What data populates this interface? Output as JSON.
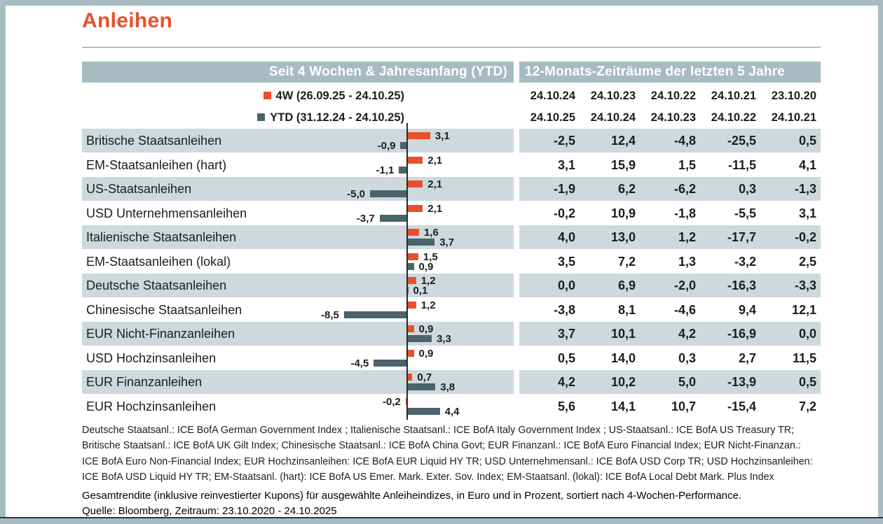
{
  "title": "Anleihen",
  "table": {
    "left_header": "Seit 4 Wochen & Jahresanfang (YTD)",
    "right_header": "12-Monats-Zeiträume der letzten 5 Jahre",
    "legend": [
      {
        "label": "4W (26.09.25 - 24.10.25)",
        "color": "#e8502a"
      },
      {
        "label": "YTD (31.12.24 - 24.10.25)",
        "color": "#4a636d"
      }
    ],
    "periods": [
      {
        "start": "24.10.24",
        "end": "24.10.25"
      },
      {
        "start": "24.10.23",
        "end": "24.10.24"
      },
      {
        "start": "24.10.22",
        "end": "24.10.23"
      },
      {
        "start": "24.10.21",
        "end": "24.10.22"
      },
      {
        "start": "23.10.20",
        "end": "24.10.21"
      }
    ],
    "rows": [
      {
        "name": "Britische Staatsanleihen",
        "w4": 3.1,
        "w4_label": "3,1",
        "ytd": -0.9,
        "ytd_label": "-0,9",
        "values": [
          "-2,5",
          "12,4",
          "-4,8",
          "-25,5",
          "0,5"
        ]
      },
      {
        "name": "EM-Staatsanleihen (hart)",
        "w4": 2.1,
        "w4_label": "2,1",
        "ytd": -1.1,
        "ytd_label": "-1,1",
        "values": [
          "3,1",
          "15,9",
          "1,5",
          "-11,5",
          "4,1"
        ]
      },
      {
        "name": "US-Staatsanleihen",
        "w4": 2.1,
        "w4_label": "2,1",
        "ytd": -5.0,
        "ytd_label": "-5,0",
        "values": [
          "-1,9",
          "6,2",
          "-6,2",
          "0,3",
          "-1,3"
        ]
      },
      {
        "name": "USD Unternehmensanleihen",
        "w4": 2.1,
        "w4_label": "2,1",
        "ytd": -3.7,
        "ytd_label": "-3,7",
        "values": [
          "-0,2",
          "10,9",
          "-1,8",
          "-5,5",
          "3,1"
        ]
      },
      {
        "name": "Italienische Staatsanleihen",
        "w4": 1.6,
        "w4_label": "1,6",
        "ytd": 3.7,
        "ytd_label": "3,7",
        "values": [
          "4,0",
          "13,0",
          "1,2",
          "-17,7",
          "-0,2"
        ]
      },
      {
        "name": "EM-Staatsanleihen (lokal)",
        "w4": 1.5,
        "w4_label": "1,5",
        "ytd": 0.9,
        "ytd_label": "0,9",
        "values": [
          "3,5",
          "7,2",
          "1,3",
          "-3,2",
          "2,5"
        ]
      },
      {
        "name": "Deutsche Staatsanleihen",
        "w4": 1.2,
        "w4_label": "1,2",
        "ytd": 0.1,
        "ytd_label": "0,1",
        "values": [
          "0,0",
          "6,9",
          "-2,0",
          "-16,3",
          "-3,3"
        ]
      },
      {
        "name": "Chinesische Staatsanleihen",
        "w4": 1.2,
        "w4_label": "1,2",
        "ytd": -8.5,
        "ytd_label": "-8,5",
        "values": [
          "-3,8",
          "8,1",
          "-4,6",
          "9,4",
          "12,1"
        ]
      },
      {
        "name": "EUR Nicht-Finanzanleihen",
        "w4": 0.9,
        "w4_label": "0,9",
        "ytd": 3.3,
        "ytd_label": "3,3",
        "values": [
          "3,7",
          "10,1",
          "4,2",
          "-16,9",
          "0,0"
        ]
      },
      {
        "name": "USD Hochzinsanleihen",
        "w4": 0.9,
        "w4_label": "0,9",
        "ytd": -4.5,
        "ytd_label": "-4,5",
        "values": [
          "0,5",
          "14,0",
          "0,3",
          "2,7",
          "11,5"
        ]
      },
      {
        "name": "EUR Finanzanleihen",
        "w4": 0.7,
        "w4_label": "0,7",
        "ytd": 3.8,
        "ytd_label": "3,8",
        "values": [
          "4,2",
          "10,2",
          "5,0",
          "-13,9",
          "0,5"
        ]
      },
      {
        "name": "EUR Hochzinsanleihen",
        "w4": -0.2,
        "w4_label": "-0,2",
        "ytd": 4.4,
        "ytd_label": "4,4",
        "values": [
          "5,6",
          "14,1",
          "10,7",
          "-15,4",
          "7,2"
        ]
      }
    ]
  },
  "footnotes": [
    "Deutsche Staatsanl.: ICE BofA German Government Index ; Italienische Staatsanl.: ICE BofA Italy Government Index ; US-Staatsanl.: ICE BofA US Treasury TR;",
    "Britische Staatsanl.: ICE BofA UK Gilt Index; Chinesische Staatsanl.: ICE BofA China Govt; EUR Finanzanl.: ICE BofA Euro Financial Index; EUR Nicht-Finanzan.:",
    "ICE BofA Euro Non-Financial Index; EUR Hochzinsanleihen: ICE BofA EUR Liquid HY TR; USD Unternehmensanl.: ICE BofA USD Corp TR; USD Hochzinsanleihen:",
    "ICE BofA USD Liquid HY TR; EM-Staatsanl. (hart): ICE BofA US Emer. Mark. Exter. Sov. Index; EM-Staatsanl. (lokal):  ICE BofA Local Debt Mark. Plus Index"
  ],
  "caption": "Gesamtrendite (inklusive reinvestierter Kupons) für ausgewählte Anleiheindizes, in Euro und in Prozent, sortiert nach 4-Wochen-Performance.",
  "source": "Quelle: Bloomberg, Zeitraum: 23.10.2020 - 24.10.2025",
  "colors": {
    "accent_orange": "#e8502a",
    "bar_gray": "#4a636d",
    "band_bg": "#a6bcc2",
    "stripe_bg": "#cdd9dc",
    "frame_border": "#a7bdc2",
    "navy_rule": "#24365c"
  },
  "chart_data": {
    "type": "bar",
    "orientation": "horizontal",
    "title": "Anleihen",
    "unit": "percent",
    "sorted_by": "4-Wochen-Performance (absteigend)",
    "categories": [
      "Britische Staatsanleihen",
      "EM-Staatsanleihen (hart)",
      "US-Staatsanleihen",
      "USD Unternehmensanleihen",
      "Italienische Staatsanleihen",
      "EM-Staatsanleihen (lokal)",
      "Deutsche Staatsanleihen",
      "Chinesische Staatsanleihen",
      "EUR Nicht-Finanzanleihen",
      "USD Hochzinsanleihen",
      "EUR Finanzanleihen",
      "EUR Hochzinsanleihen"
    ],
    "series": [
      {
        "name": "4W (26.09.25 - 24.10.25)",
        "color": "#e8502a",
        "values": [
          3.1,
          2.1,
          2.1,
          2.1,
          1.6,
          1.5,
          1.2,
          1.2,
          0.9,
          0.9,
          0.7,
          -0.2
        ]
      },
      {
        "name": "YTD (31.12.24 - 24.10.25)",
        "color": "#4a636d",
        "values": [
          -0.9,
          -1.1,
          -5.0,
          -3.7,
          3.7,
          0.9,
          0.1,
          -8.5,
          3.3,
          -4.5,
          3.8,
          4.4
        ]
      }
    ],
    "legend_position": "top-left-of-axis",
    "axis": {
      "zero_line": true,
      "gridlines": false
    },
    "companion_table": {
      "header": "12-Monats-Zeiträume der letzten 5 Jahre",
      "period_start": [
        "24.10.24",
        "24.10.23",
        "24.10.22",
        "24.10.21",
        "23.10.20"
      ],
      "period_end": [
        "24.10.25",
        "24.10.24",
        "24.10.23",
        "24.10.22",
        "24.10.21"
      ],
      "values": [
        [
          -2.5,
          12.4,
          -4.8,
          -25.5,
          0.5
        ],
        [
          3.1,
          15.9,
          1.5,
          -11.5,
          4.1
        ],
        [
          -1.9,
          6.2,
          -6.2,
          0.3,
          -1.3
        ],
        [
          -0.2,
          10.9,
          -1.8,
          -5.5,
          3.1
        ],
        [
          4.0,
          13.0,
          1.2,
          -17.7,
          -0.2
        ],
        [
          3.5,
          7.2,
          1.3,
          -3.2,
          2.5
        ],
        [
          0.0,
          6.9,
          -2.0,
          -16.3,
          -3.3
        ],
        [
          -3.8,
          8.1,
          -4.6,
          9.4,
          12.1
        ],
        [
          3.7,
          10.1,
          4.2,
          -16.9,
          0.0
        ],
        [
          0.5,
          14.0,
          0.3,
          2.7,
          11.5
        ],
        [
          4.2,
          10.2,
          5.0,
          -13.9,
          0.5
        ],
        [
          5.6,
          14.1,
          10.7,
          -15.4,
          7.2
        ]
      ]
    }
  }
}
